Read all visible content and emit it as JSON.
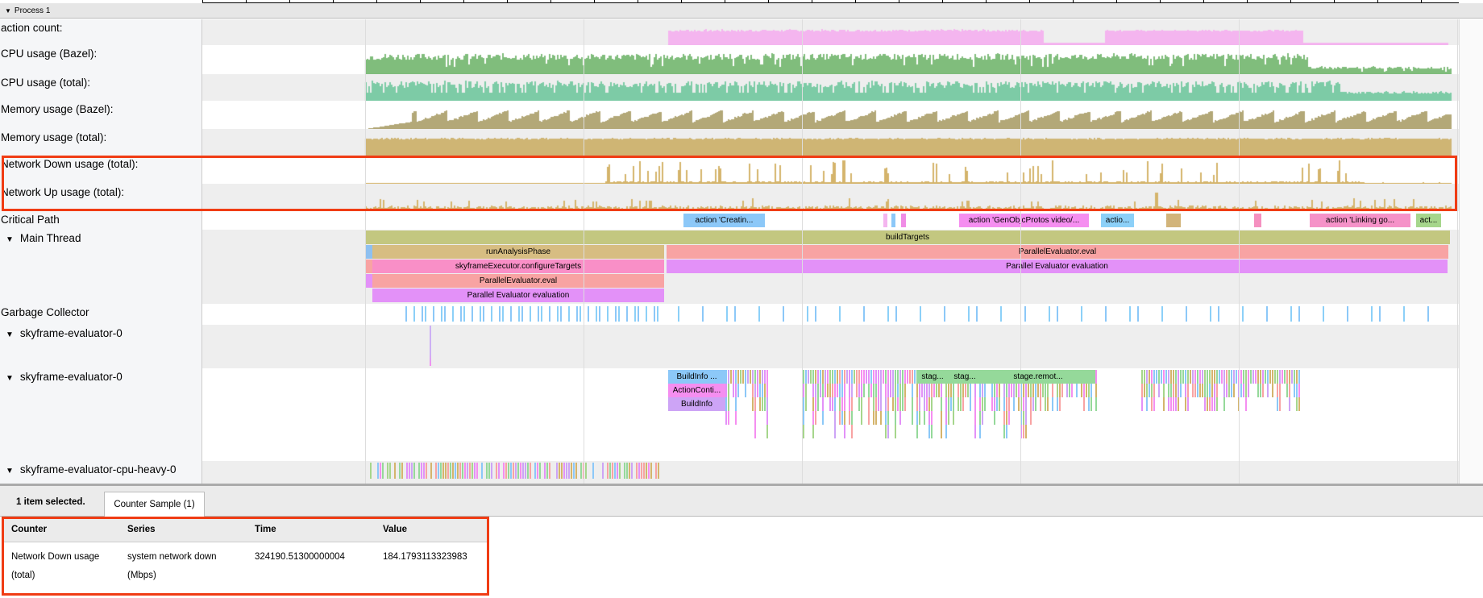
{
  "process": {
    "label": "Process 1"
  },
  "tracks": [
    {
      "label": "action count:",
      "color": "#f4b5ef"
    },
    {
      "label": "CPU usage (Bazel):",
      "color": "#80bd7c"
    },
    {
      "label": "CPU usage (total):",
      "color": "#7dcba6"
    },
    {
      "label": "Memory usage (Bazel):",
      "color": "#b3a878"
    },
    {
      "label": "Memory usage (total):",
      "color": "#cfb574"
    },
    {
      "label": "Network Down usage (total):",
      "color": "#d4b46c"
    },
    {
      "label": "Network Up usage (total):",
      "color": "#d4b46c"
    }
  ],
  "threads": {
    "critical_path": "Critical Path",
    "main_thread": "Main Thread",
    "gc": "Garbage Collector",
    "eval0a": "skyframe-evaluator-0",
    "eval0b": "skyframe-evaluator-0",
    "cpu_heavy": "skyframe-evaluator-cpu-heavy-0"
  },
  "critical_path_slices": [
    "action 'Creatin...",
    "action 'GenObjcProtos video/...",
    "actio...",
    "action 'Linking go...",
    "act..."
  ],
  "main_slices": {
    "buildTargets": "buildTargets",
    "runAnalysisPhase": "runAnalysisPhase",
    "eval_right": "ParallelEvaluator.eval",
    "configureTargets": "skyframeExecutor.configureTargets",
    "evaluation_right": "Parallel Evaluator evaluation",
    "eval_left": "ParallelEvaluator.eval",
    "evaluation_left": "Parallel Evaluator evaluation"
  },
  "evaluator_slices": [
    "BuildInfo ...",
    "ActionConti...",
    "BuildInfo",
    "stag...",
    "stag...",
    "stage.remot..."
  ],
  "bottom": {
    "selection": "1 item selected.",
    "tab": "Counter Sample (1)",
    "columns": [
      "Counter",
      "Series",
      "Time",
      "Value"
    ],
    "rows": [
      {
        "counter": "Network Down usage (total)",
        "series": "system network down (Mbps)",
        "time": "324190.51300000004",
        "value": "184.1793113323983"
      }
    ]
  }
}
